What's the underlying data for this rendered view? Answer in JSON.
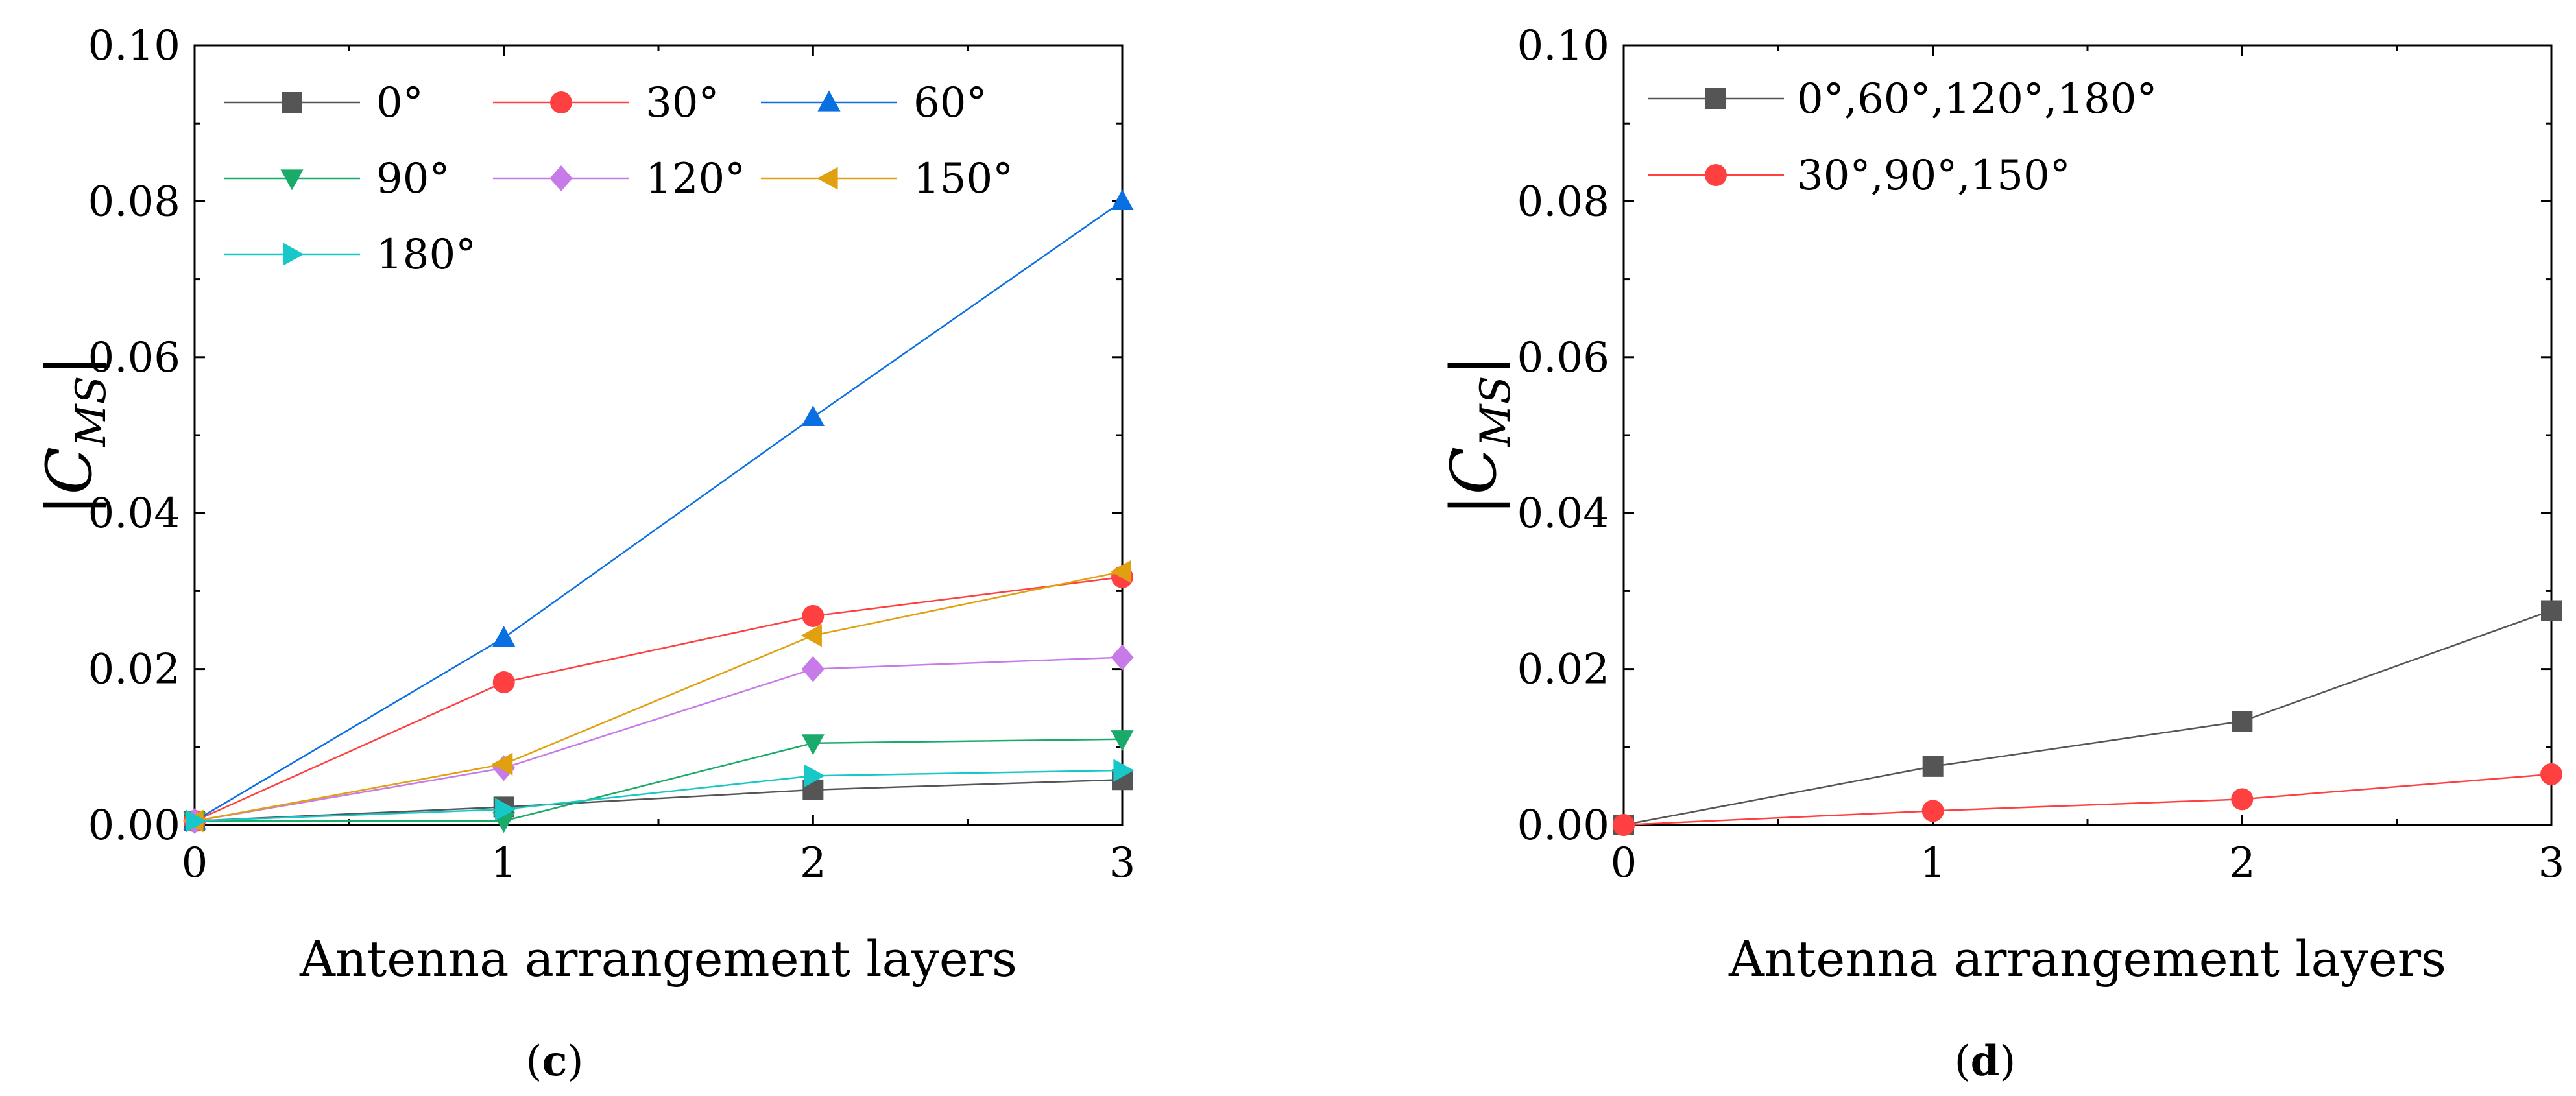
{
  "chart_data": [
    {
      "type": "line",
      "panel": "(c)",
      "panel_letter": "c",
      "xlabel": "Antenna arrangement layers",
      "ylabel_main": "C",
      "ylabel_sub": "MS",
      "xlim": [
        0,
        3
      ],
      "ylim": [
        0,
        0.1
      ],
      "x_ticks": [
        "0",
        "1",
        "2",
        "3"
      ],
      "y_ticks": [
        "0.00",
        "0.02",
        "0.04",
        "0.06",
        "0.08",
        "0.10"
      ],
      "legend_position": "top-left",
      "x": [
        0,
        1,
        2,
        3
      ],
      "series": [
        {
          "name": "0°",
          "marker": "square",
          "color": "#555555",
          "values": [
            0.0005,
            0.0023,
            0.0045,
            0.0058
          ]
        },
        {
          "name": "30°",
          "marker": "circle",
          "color": "#FF4040",
          "values": [
            0.0005,
            0.0183,
            0.0268,
            0.0318
          ]
        },
        {
          "name": "60°",
          "marker": "triangle-up",
          "color": "#0A6FE0",
          "values": [
            0.0005,
            0.024,
            0.0523,
            0.08
          ]
        },
        {
          "name": "90°",
          "marker": "triangle-down",
          "color": "#1AAA6A",
          "values": [
            0.0005,
            0.0005,
            0.0105,
            0.011
          ]
        },
        {
          "name": "120°",
          "marker": "diamond",
          "color": "#C77BE8",
          "values": [
            0.0005,
            0.0073,
            0.02,
            0.0215
          ]
        },
        {
          "name": "150°",
          "marker": "triangle-left",
          "color": "#E0A010",
          "values": [
            0.0005,
            0.0078,
            0.0243,
            0.0325
          ]
        },
        {
          "name": "180°",
          "marker": "triangle-right",
          "color": "#18C8C8",
          "values": [
            0.0005,
            0.002,
            0.0063,
            0.007
          ]
        }
      ]
    },
    {
      "type": "line",
      "panel": "(d)",
      "panel_letter": "d",
      "xlabel": "Antenna arrangement layers",
      "ylabel_main": "C",
      "ylabel_sub": "MS",
      "xlim": [
        0,
        3
      ],
      "ylim": [
        0,
        0.1
      ],
      "x_ticks": [
        "0",
        "1",
        "2",
        "3"
      ],
      "y_ticks": [
        "0.00",
        "0.02",
        "0.04",
        "0.06",
        "0.08",
        "0.10"
      ],
      "legend_position": "top-left",
      "x": [
        0,
        1,
        2,
        3
      ],
      "series": [
        {
          "name": "0°,60°,120°,180°",
          "marker": "square",
          "color": "#555555",
          "values": [
            0.0,
            0.0075,
            0.0133,
            0.0275
          ]
        },
        {
          "name": "30°,90°,150°",
          "marker": "circle",
          "color": "#FF4040",
          "values": [
            0.0,
            0.0018,
            0.0033,
            0.0065
          ]
        }
      ]
    }
  ]
}
